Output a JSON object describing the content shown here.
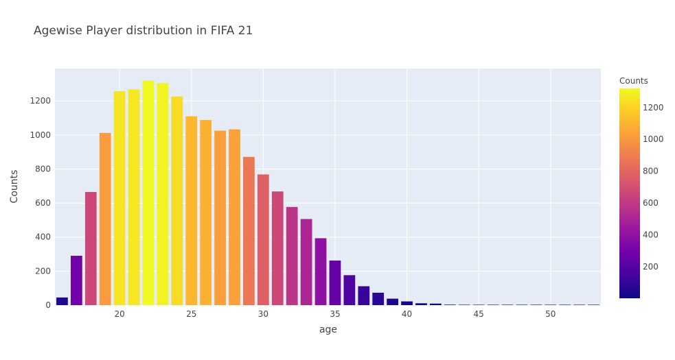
{
  "chart_data": {
    "type": "bar",
    "title": "Agewise Player distribution in FIFA 21",
    "xlabel": "age",
    "ylabel": "Counts",
    "xlim": [
      15.5,
      53.5
    ],
    "ylim": [
      0,
      1390
    ],
    "x_ticks": [
      20,
      25,
      30,
      35,
      40,
      45,
      50
    ],
    "y_ticks": [
      0,
      200,
      400,
      600,
      800,
      1000,
      1200
    ],
    "grid": true,
    "colorbar": {
      "title": "Counts",
      "range": [
        1,
        1320
      ],
      "ticks": [
        200,
        400,
        600,
        800,
        1000,
        1200
      ],
      "colorscale": [
        "#0d0887",
        "#46039f",
        "#7201a8",
        "#9c179e",
        "#bd3786",
        "#d8576b",
        "#ed7953",
        "#fb9f3a",
        "#fdca26",
        "#f0f921"
      ]
    },
    "x": [
      16,
      17,
      18,
      19,
      20,
      21,
      22,
      23,
      24,
      25,
      26,
      27,
      28,
      29,
      30,
      31,
      32,
      33,
      34,
      35,
      36,
      37,
      38,
      39,
      40,
      41,
      42,
      43,
      44,
      45,
      46,
      47,
      48,
      49,
      50,
      51,
      52,
      53
    ],
    "values": [
      45,
      290,
      665,
      1012,
      1257,
      1268,
      1320,
      1305,
      1226,
      1110,
      1088,
      1025,
      1033,
      871,
      768,
      668,
      577,
      506,
      393,
      262,
      176,
      111,
      73,
      38,
      22,
      11,
      9,
      3,
      1,
      1,
      1,
      2,
      1,
      1,
      1,
      1,
      1,
      1
    ]
  }
}
